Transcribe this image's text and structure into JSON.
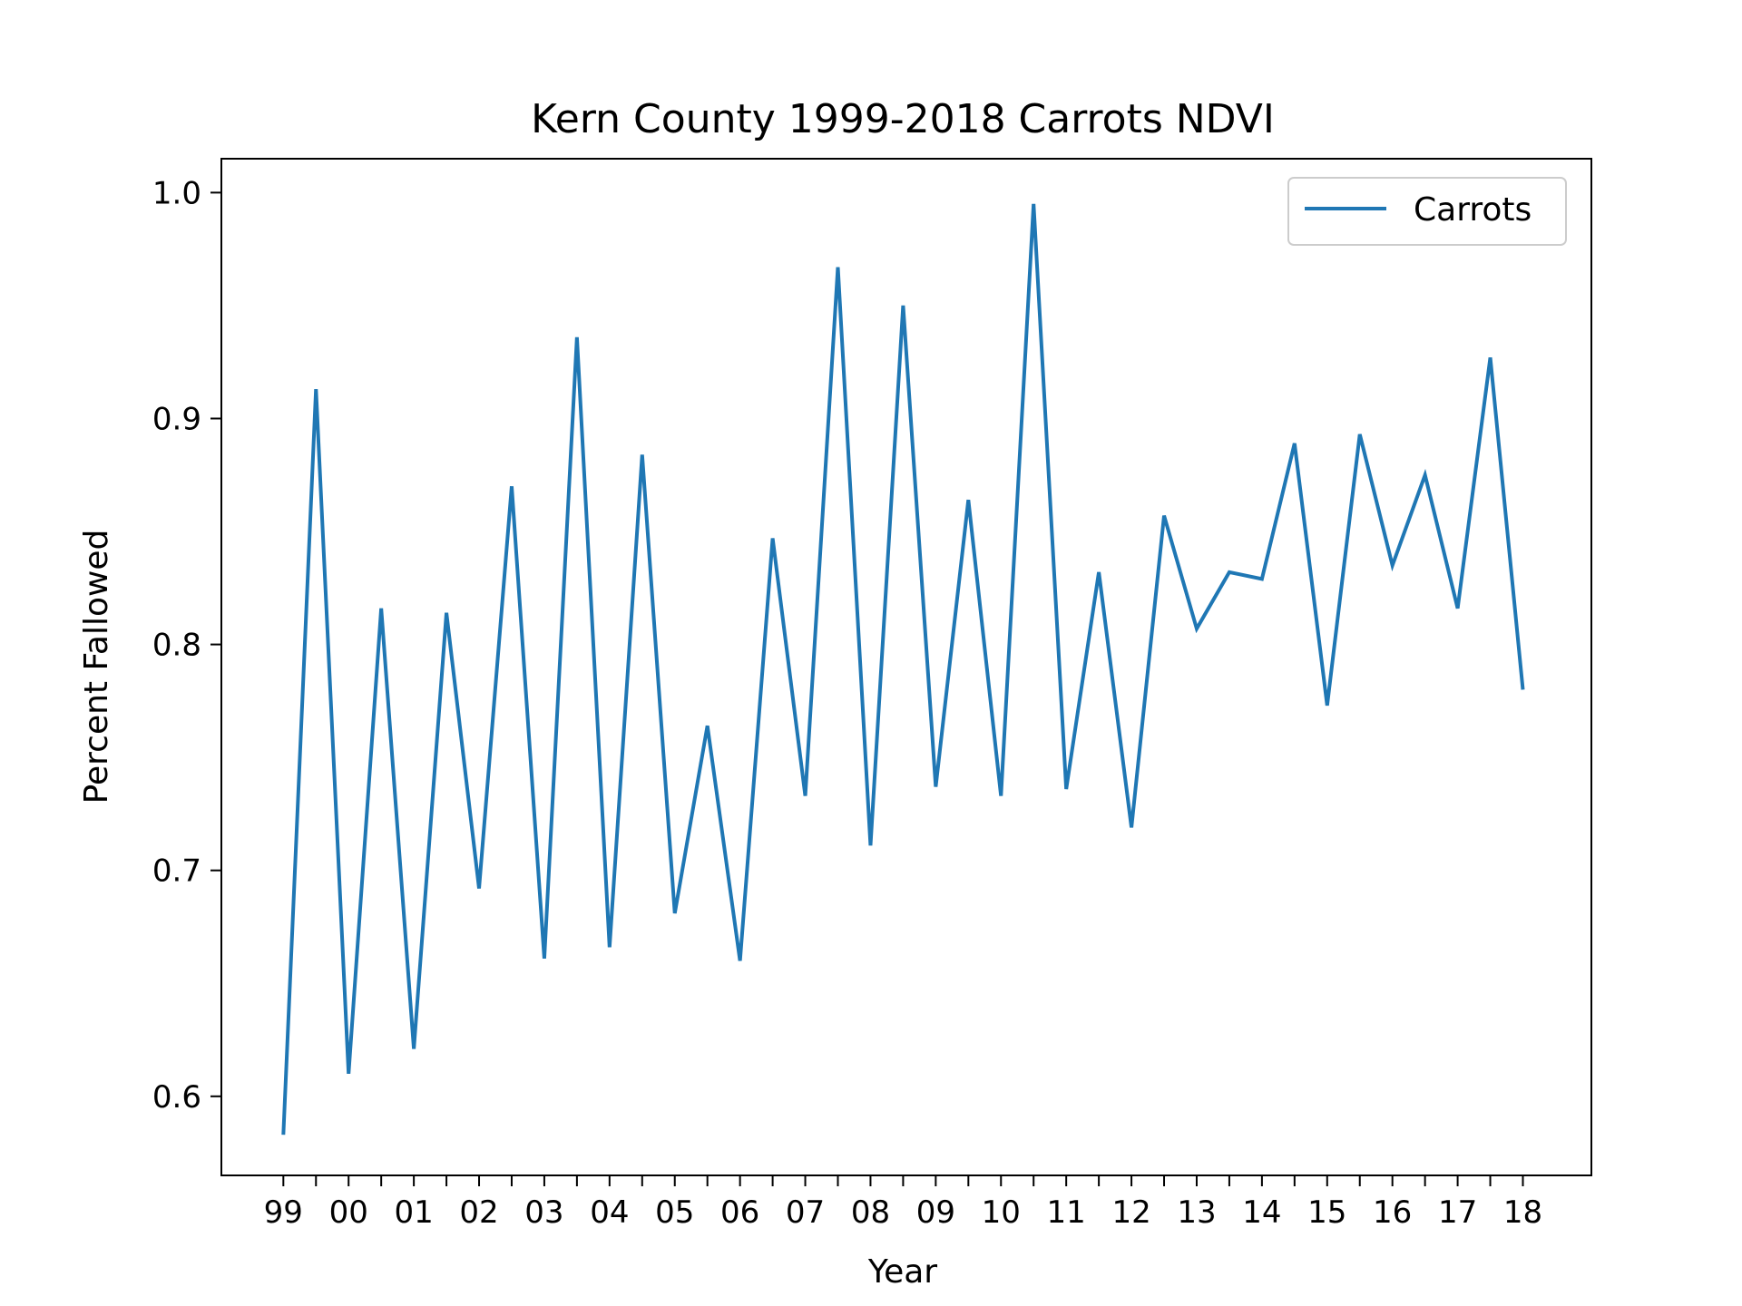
{
  "chart_data": {
    "type": "line",
    "title": "Kern County 1999-2018 Carrots NDVI",
    "xlabel": "Year",
    "ylabel": "Percent Fallowed",
    "x_ticks": [
      "99",
      "00",
      "01",
      "02",
      "03",
      "04",
      "05",
      "06",
      "07",
      "08",
      "09",
      "10",
      "11",
      "12",
      "13",
      "14",
      "15",
      "16",
      "17",
      "18"
    ],
    "y_ticks": [
      "0.6",
      "0.7",
      "0.8",
      "0.9",
      "1.0"
    ],
    "ylim": [
      0.565,
      1.015
    ],
    "xlim": [
      -0.95,
      20.05
    ],
    "grid": false,
    "legend_position": "top-right",
    "series": [
      {
        "name": "Carrots",
        "color": "#1f77b4",
        "x": [
          0,
          0.5,
          1,
          1.5,
          2,
          2.5,
          3,
          3.5,
          4,
          4.5,
          5,
          5.5,
          6,
          6.5,
          7,
          7.5,
          8,
          8.5,
          9,
          9.5,
          10,
          10.5,
          11,
          11.5,
          12,
          12.5,
          13,
          13.5,
          14,
          14.5,
          15,
          15.5,
          16,
          16.5,
          17,
          17.5,
          18,
          18.5,
          19
        ],
        "values": [
          0.583,
          0.913,
          0.61,
          0.816,
          0.621,
          0.814,
          0.692,
          0.87,
          0.661,
          0.936,
          0.666,
          0.884,
          0.681,
          0.764,
          0.66,
          0.847,
          0.733,
          0.967,
          0.711,
          0.95,
          0.737,
          0.864,
          0.733,
          0.995,
          0.736,
          0.832,
          0.719,
          0.857,
          0.807,
          0.832,
          0.829,
          0.889,
          0.773,
          0.893,
          0.835,
          0.875,
          0.816,
          0.927,
          0.78
        ]
      }
    ]
  }
}
